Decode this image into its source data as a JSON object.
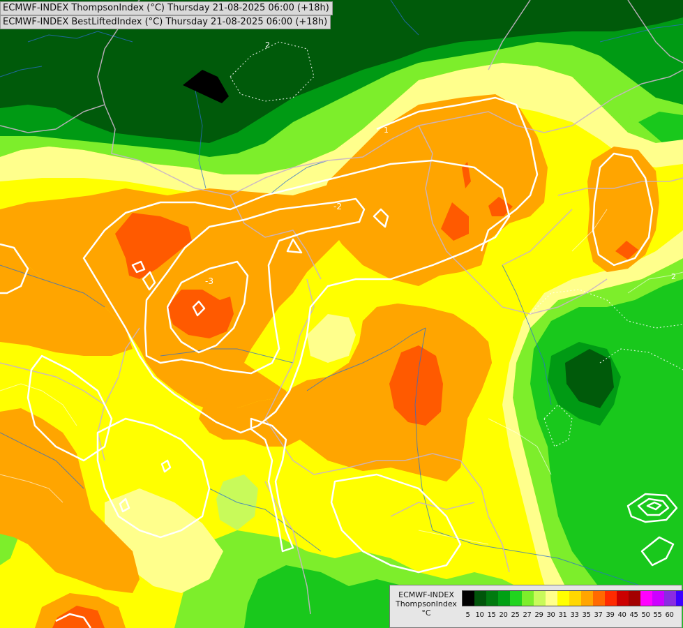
{
  "titles": [
    "ECMWF-INDEX ThompsonIndex (°C) Thursday 21-08-2025 06:00 (+18h)",
    "ECMWF-INDEX BestLiftedIndex (°C) Thursday 21-08-2025 06:00 (+18h)"
  ],
  "legend": {
    "label_lines": [
      "ECMWF-INDEX",
      "ThompsonIndex",
      "°C"
    ],
    "ticks": [
      "5",
      "10",
      "15",
      "20",
      "25",
      "27",
      "29",
      "30",
      "31",
      "33",
      "35",
      "37",
      "39",
      "40",
      "45",
      "50",
      "55",
      "60"
    ],
    "colors": [
      "#000000",
      "#000000",
      "#000000",
      "#000000",
      "#00550a",
      "#007a0f",
      "#00a014",
      "#21d41e",
      "#7dee2b",
      "#c8fa5a",
      "#ffff8c",
      "#ffff00",
      "#ffd700",
      "#ffa500",
      "#ff6a00",
      "#ff2b00",
      "#cc0000",
      "#a30000",
      "#ff00ff",
      "#cc00ff",
      "#8a2be2",
      "#3d00ff",
      "#0000ff"
    ]
  },
  "contour_labels": [
    {
      "id": "contour-label-minus2-center",
      "text": "-2"
    },
    {
      "id": "contour-label-minus3",
      "text": "-3"
    },
    {
      "id": "contour-label-2-north",
      "text": "2"
    },
    {
      "id": "contour-label-2-east",
      "text": "2"
    },
    {
      "id": "contour-label-1-north",
      "text": "1"
    }
  ],
  "map_colors": {
    "dark_green": "#005a0a",
    "mid_green": "#009a14",
    "green": "#19c81c",
    "light_green": "#7dee2b",
    "pale_green": "#c8fa5a",
    "pale_yellow": "#ffff8c",
    "yellow": "#ffff00",
    "orange": "#ffa500",
    "red_orange": "#ff5a00",
    "black": "#000000",
    "contour": "#ffffff",
    "border": "#c8b4c8",
    "river": "#2a6ecf"
  }
}
